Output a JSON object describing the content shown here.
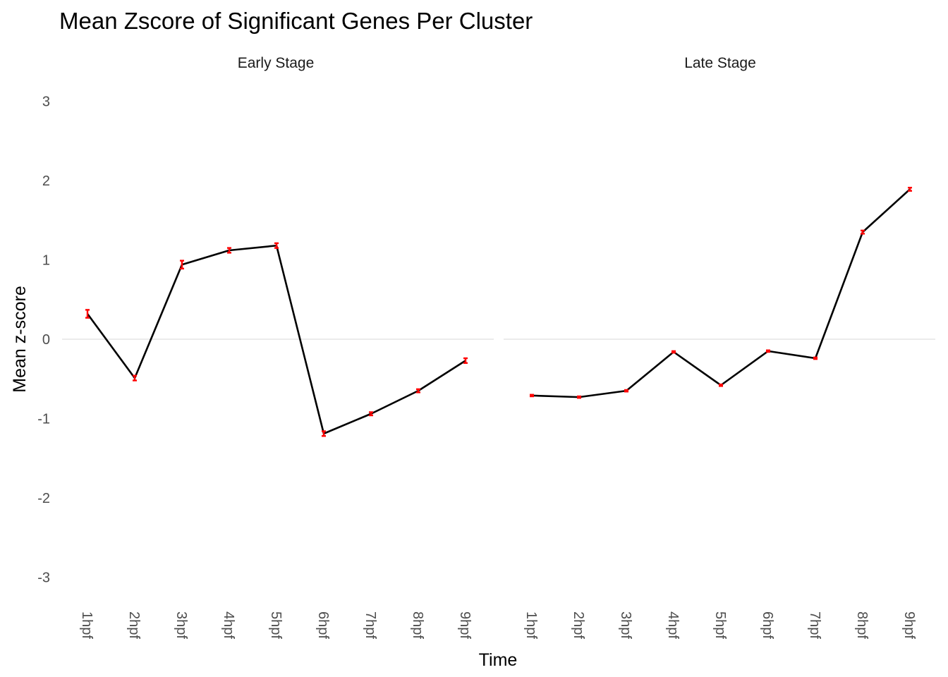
{
  "chart_data": {
    "type": "line",
    "title": "Mean Zscore of Significant Genes Per Cluster",
    "xlabel": "Time",
    "ylabel": "Mean z-score",
    "ylim": [
      -3.3,
      3.2
    ],
    "y_ticks": [
      "3",
      "2",
      "1",
      "0",
      "-1",
      "-2",
      "-3"
    ],
    "y_tick_values": [
      3,
      2,
      1,
      0,
      -1,
      -2,
      -3
    ],
    "grid": "horizontal line at y = 0 only",
    "legend": "none",
    "colors": {
      "line": "#000000",
      "error_bars": "#ff0000",
      "zero_line": "#ebebeb"
    },
    "categories": [
      "1hpf",
      "2hpf",
      "3hpf",
      "4hpf",
      "5hpf",
      "6hpf",
      "7hpf",
      "8hpf",
      "9hpf"
    ],
    "panels": [
      {
        "label": "Early Stage",
        "values": [
          0.32,
          -0.49,
          0.94,
          1.12,
          1.18,
          -1.19,
          -0.94,
          -0.65,
          -0.27
        ],
        "errors": [
          0.05,
          0.03,
          0.05,
          0.03,
          0.03,
          0.03,
          0.02,
          0.02,
          0.03
        ]
      },
      {
        "label": "Late Stage",
        "values": [
          -0.71,
          -0.73,
          -0.65,
          -0.16,
          -0.58,
          -0.15,
          -0.24,
          1.35,
          1.89
        ],
        "errors": [
          0.01,
          0.01,
          0.01,
          0.01,
          0.01,
          0.01,
          0.01,
          0.02,
          0.02
        ]
      }
    ]
  }
}
